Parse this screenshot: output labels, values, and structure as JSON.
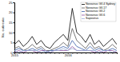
{
  "chart_data": {
    "type": "line",
    "y_label": "No. outbreaks",
    "categories": [
      "2015",
      null,
      null,
      null,
      null,
      null,
      null,
      null,
      null,
      null,
      null,
      null,
      "2016",
      null,
      null,
      null,
      null,
      null,
      null,
      null,
      null,
      null,
      null,
      null
    ],
    "series": [
      {
        "name": "Norovirus GII.4 Sydney",
        "color": "#000000",
        "values": [
          4,
          6,
          3,
          5,
          8,
          4,
          6,
          3,
          2,
          5,
          7,
          9,
          6,
          22,
          10,
          8,
          5,
          9,
          4,
          6,
          3,
          5,
          7,
          4
        ]
      },
      {
        "name": "Norovirus GII.17",
        "color": "#555555",
        "values": [
          2,
          3,
          1,
          2,
          4,
          2,
          3,
          1,
          1,
          2,
          3,
          5,
          3,
          12,
          6,
          4,
          2,
          5,
          2,
          3,
          1,
          2,
          4,
          2
        ]
      },
      {
        "name": "Norovirus GII.2",
        "color": "#3a5fa8",
        "values": [
          1,
          2,
          1,
          1,
          2,
          1,
          2,
          0,
          1,
          1,
          2,
          3,
          2,
          6,
          3,
          2,
          1,
          3,
          1,
          2,
          1,
          1,
          2,
          1
        ]
      },
      {
        "name": "Norovirus GII.6",
        "color": "#8a4fa0",
        "values": [
          0,
          1,
          0,
          1,
          1,
          0,
          1,
          1,
          0,
          1,
          1,
          1,
          1,
          3,
          1,
          1,
          1,
          1,
          0,
          1,
          0,
          1,
          1,
          0
        ]
      },
      {
        "name": "Sapovirus",
        "color": "#9ab0d8",
        "values": [
          1,
          0,
          1,
          1,
          1,
          1,
          0,
          1,
          0,
          1,
          1,
          2,
          1,
          2,
          1,
          1,
          1,
          1,
          1,
          0,
          1,
          1,
          0,
          1
        ]
      }
    ],
    "ylim": [
      0,
      25
    ],
    "yticks": [
      0,
      5,
      10,
      15,
      20,
      25
    ],
    "legend": "top-right"
  }
}
